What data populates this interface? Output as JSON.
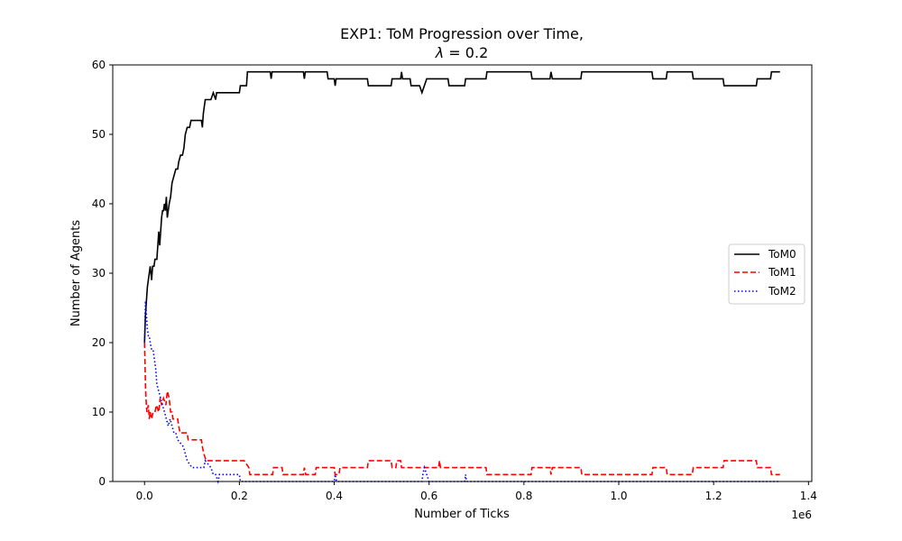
{
  "chart_data": {
    "type": "line",
    "title_line1": "EXP1: ToM Progression over Time,",
    "title_line2_prefix": "λ",
    "title_line2_suffix": " = 0.2",
    "xlabel": "Number of Ticks",
    "ylabel": "Number of Agents",
    "x_offset_label": "1e6",
    "xlim": [
      -0.067,
      1.407
    ],
    "ylim": [
      0,
      60
    ],
    "x_ticks": [
      0.0,
      0.2,
      0.4,
      0.6,
      0.8,
      1.0,
      1.2,
      1.4
    ],
    "x_tick_labels": [
      "0.0",
      "0.2",
      "0.4",
      "0.6",
      "0.8",
      "1.0",
      "1.2",
      "1.4"
    ],
    "y_ticks": [
      0,
      10,
      20,
      30,
      40,
      50,
      60
    ],
    "y_tick_labels": [
      "0",
      "10",
      "20",
      "30",
      "40",
      "50",
      "60"
    ],
    "grid": false,
    "legend_position": "center-right",
    "series": [
      {
        "name": "ToM0",
        "color": "#000000",
        "style": "solid",
        "points": [
          [
            0.0,
            20
          ],
          [
            0.002,
            24
          ],
          [
            0.004,
            26
          ],
          [
            0.006,
            28
          ],
          [
            0.008,
            29
          ],
          [
            0.01,
            30
          ],
          [
            0.012,
            31
          ],
          [
            0.015,
            29
          ],
          [
            0.017,
            31
          ],
          [
            0.02,
            31
          ],
          [
            0.022,
            32
          ],
          [
            0.026,
            32
          ],
          [
            0.028,
            34
          ],
          [
            0.03,
            36
          ],
          [
            0.032,
            34
          ],
          [
            0.034,
            36
          ],
          [
            0.036,
            38
          ],
          [
            0.038,
            39
          ],
          [
            0.04,
            39
          ],
          [
            0.042,
            40
          ],
          [
            0.044,
            39
          ],
          [
            0.046,
            41
          ],
          [
            0.048,
            38
          ],
          [
            0.05,
            39
          ],
          [
            0.052,
            40
          ],
          [
            0.055,
            41
          ],
          [
            0.058,
            43
          ],
          [
            0.062,
            44
          ],
          [
            0.066,
            45
          ],
          [
            0.07,
            45
          ],
          [
            0.072,
            46
          ],
          [
            0.076,
            47
          ],
          [
            0.08,
            47
          ],
          [
            0.083,
            48
          ],
          [
            0.086,
            50
          ],
          [
            0.09,
            51
          ],
          [
            0.095,
            51
          ],
          [
            0.098,
            52
          ],
          [
            0.11,
            52
          ],
          [
            0.12,
            52
          ],
          [
            0.122,
            51
          ],
          [
            0.124,
            53
          ],
          [
            0.128,
            55
          ],
          [
            0.14,
            55
          ],
          [
            0.145,
            56
          ],
          [
            0.15,
            55
          ],
          [
            0.152,
            56
          ],
          [
            0.2,
            56
          ],
          [
            0.202,
            57
          ],
          [
            0.215,
            57
          ],
          [
            0.217,
            59
          ],
          [
            0.265,
            59
          ],
          [
            0.267,
            58
          ],
          [
            0.269,
            59
          ],
          [
            0.335,
            59
          ],
          [
            0.337,
            58
          ],
          [
            0.339,
            59
          ],
          [
            0.385,
            59
          ],
          [
            0.387,
            58
          ],
          [
            0.4,
            58
          ],
          [
            0.402,
            57
          ],
          [
            0.404,
            58
          ],
          [
            0.47,
            58
          ],
          [
            0.472,
            57
          ],
          [
            0.52,
            57
          ],
          [
            0.522,
            58
          ],
          [
            0.54,
            58
          ],
          [
            0.542,
            59
          ],
          [
            0.544,
            58
          ],
          [
            0.56,
            58
          ],
          [
            0.562,
            57
          ],
          [
            0.58,
            57
          ],
          [
            0.585,
            56
          ],
          [
            0.59,
            57
          ],
          [
            0.595,
            58
          ],
          [
            0.64,
            58
          ],
          [
            0.642,
            57
          ],
          [
            0.675,
            57
          ],
          [
            0.677,
            58
          ],
          [
            0.72,
            58
          ],
          [
            0.722,
            59
          ],
          [
            0.815,
            59
          ],
          [
            0.817,
            58
          ],
          [
            0.855,
            58
          ],
          [
            0.857,
            59
          ],
          [
            0.86,
            58
          ],
          [
            0.92,
            58
          ],
          [
            0.922,
            59
          ],
          [
            1.07,
            59
          ],
          [
            1.072,
            58
          ],
          [
            1.1,
            58
          ],
          [
            1.102,
            59
          ],
          [
            1.155,
            59
          ],
          [
            1.157,
            58
          ],
          [
            1.22,
            58
          ],
          [
            1.222,
            57
          ],
          [
            1.29,
            57
          ],
          [
            1.292,
            58
          ],
          [
            1.32,
            58
          ],
          [
            1.322,
            59
          ],
          [
            1.34,
            59
          ]
        ]
      },
      {
        "name": "ToM1",
        "color": "#ff0000",
        "style": "dashed",
        "points": [
          [
            0.0,
            20
          ],
          [
            0.001,
            17
          ],
          [
            0.002,
            14
          ],
          [
            0.003,
            12
          ],
          [
            0.005,
            10
          ],
          [
            0.008,
            11
          ],
          [
            0.01,
            9
          ],
          [
            0.012,
            10
          ],
          [
            0.015,
            9
          ],
          [
            0.018,
            10
          ],
          [
            0.022,
            10
          ],
          [
            0.025,
            11
          ],
          [
            0.03,
            10
          ],
          [
            0.033,
            12
          ],
          [
            0.036,
            11
          ],
          [
            0.04,
            12
          ],
          [
            0.045,
            11
          ],
          [
            0.048,
            13
          ],
          [
            0.052,
            12
          ],
          [
            0.055,
            10
          ],
          [
            0.058,
            10
          ],
          [
            0.06,
            9
          ],
          [
            0.07,
            9
          ],
          [
            0.072,
            8
          ],
          [
            0.075,
            7
          ],
          [
            0.09,
            7
          ],
          [
            0.092,
            6
          ],
          [
            0.12,
            6
          ],
          [
            0.122,
            5
          ],
          [
            0.125,
            4
          ],
          [
            0.13,
            3
          ],
          [
            0.21,
            3
          ],
          [
            0.22,
            2
          ],
          [
            0.222,
            1
          ],
          [
            0.27,
            1
          ],
          [
            0.272,
            2
          ],
          [
            0.29,
            2
          ],
          [
            0.292,
            1
          ],
          [
            0.335,
            1
          ],
          [
            0.337,
            2
          ],
          [
            0.34,
            1
          ],
          [
            0.36,
            1
          ],
          [
            0.362,
            2
          ],
          [
            0.4,
            2
          ],
          [
            0.402,
            1
          ],
          [
            0.41,
            1
          ],
          [
            0.412,
            2
          ],
          [
            0.47,
            2
          ],
          [
            0.472,
            3
          ],
          [
            0.52,
            3
          ],
          [
            0.522,
            2
          ],
          [
            0.53,
            2
          ],
          [
            0.532,
            3
          ],
          [
            0.54,
            3
          ],
          [
            0.542,
            2
          ],
          [
            0.62,
            2
          ],
          [
            0.622,
            3
          ],
          [
            0.624,
            2
          ],
          [
            0.72,
            2
          ],
          [
            0.722,
            1
          ],
          [
            0.815,
            1
          ],
          [
            0.817,
            2
          ],
          [
            0.855,
            2
          ],
          [
            0.857,
            1
          ],
          [
            0.86,
            2
          ],
          [
            0.92,
            2
          ],
          [
            0.922,
            1
          ],
          [
            1.07,
            1
          ],
          [
            1.072,
            2
          ],
          [
            1.1,
            2
          ],
          [
            1.102,
            1
          ],
          [
            1.155,
            1
          ],
          [
            1.157,
            2
          ],
          [
            1.22,
            2
          ],
          [
            1.222,
            3
          ],
          [
            1.29,
            3
          ],
          [
            1.292,
            2
          ],
          [
            1.32,
            2
          ],
          [
            1.322,
            1
          ],
          [
            1.34,
            1
          ]
        ]
      },
      {
        "name": "ToM2",
        "color": "#0000ff",
        "style": "dotted",
        "points": [
          [
            0.0,
            20
          ],
          [
            0.001,
            23
          ],
          [
            0.002,
            26
          ],
          [
            0.004,
            24
          ],
          [
            0.006,
            22
          ],
          [
            0.008,
            21
          ],
          [
            0.01,
            21
          ],
          [
            0.012,
            20
          ],
          [
            0.015,
            19
          ],
          [
            0.018,
            19
          ],
          [
            0.02,
            18
          ],
          [
            0.022,
            17
          ],
          [
            0.024,
            16
          ],
          [
            0.026,
            14
          ],
          [
            0.03,
            13
          ],
          [
            0.034,
            12
          ],
          [
            0.038,
            11
          ],
          [
            0.042,
            10
          ],
          [
            0.046,
            9
          ],
          [
            0.05,
            8
          ],
          [
            0.054,
            9
          ],
          [
            0.058,
            8
          ],
          [
            0.062,
            7
          ],
          [
            0.066,
            7
          ],
          [
            0.07,
            6
          ],
          [
            0.082,
            5
          ],
          [
            0.086,
            4
          ],
          [
            0.09,
            3
          ],
          [
            0.1,
            2
          ],
          [
            0.125,
            2
          ],
          [
            0.128,
            3
          ],
          [
            0.14,
            2
          ],
          [
            0.145,
            1
          ],
          [
            0.15,
            1
          ],
          [
            0.155,
            0
          ],
          [
            0.158,
            1
          ],
          [
            0.2,
            1
          ],
          [
            0.202,
            0
          ],
          [
            0.4,
            0
          ],
          [
            0.402,
            1
          ],
          [
            0.405,
            0
          ],
          [
            0.585,
            0
          ],
          [
            0.587,
            1
          ],
          [
            0.59,
            2
          ],
          [
            0.595,
            1
          ],
          [
            0.6,
            0
          ],
          [
            0.675,
            0
          ],
          [
            0.677,
            1
          ],
          [
            0.679,
            0
          ],
          [
            1.34,
            0
          ]
        ]
      }
    ]
  }
}
